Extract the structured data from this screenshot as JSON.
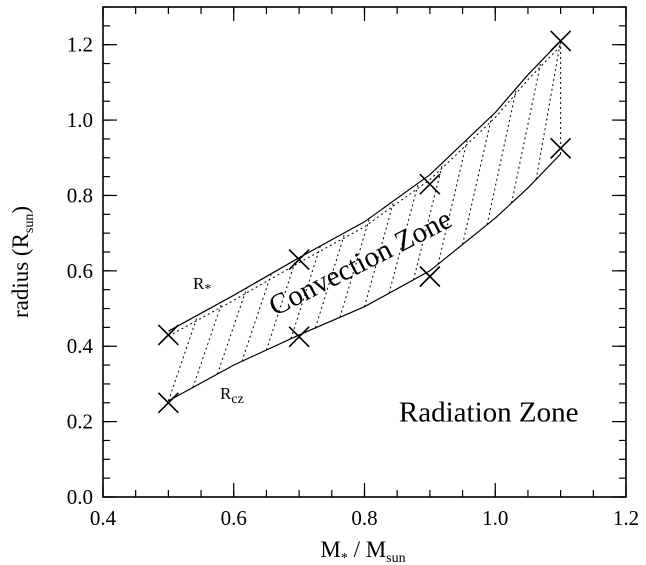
{
  "chart_data": {
    "type": "line",
    "x_axis": {
      "label_main": "M",
      "label_sub1": "*",
      "label_sep": " / M",
      "label_sub2": "sun",
      "range": [
        0.4,
        1.2
      ],
      "ticks": [
        0.4,
        0.6,
        0.8,
        1.0,
        1.2
      ],
      "tick_labels": [
        "0.4",
        "0.6",
        "0.8",
        "1.0",
        "1.2"
      ],
      "minor_step": 0.05
    },
    "y_axis": {
      "label_main": "radius (R",
      "label_sub": "sun",
      "label_end": ")",
      "range": [
        0.0,
        1.3
      ],
      "ticks": [
        0.0,
        0.2,
        0.4,
        0.6,
        0.8,
        1.0,
        1.2
      ],
      "tick_labels": [
        "0.0",
        "0.2",
        "0.4",
        "0.6",
        "0.8",
        "1.0",
        "1.2"
      ],
      "minor_step": 0.05
    },
    "series": [
      {
        "label_main": "R",
        "label_sub": "*",
        "x": [
          0.5,
          0.6,
          0.7,
          0.8,
          0.9,
          1.0,
          1.05,
          1.1
        ],
        "y": [
          0.44,
          0.535,
          0.635,
          0.73,
          0.855,
          1.02,
          1.12,
          1.21
        ],
        "markers_x": [
          0.5,
          0.7,
          0.9,
          1.1
        ],
        "markers_y": [
          0.43,
          0.63,
          0.83,
          1.21
        ]
      },
      {
        "label_main": "R",
        "label_sub": "cz",
        "x": [
          0.5,
          0.6,
          0.7,
          0.8,
          0.9,
          1.0,
          1.05,
          1.1
        ],
        "y": [
          0.255,
          0.35,
          0.43,
          0.505,
          0.6,
          0.74,
          0.82,
          0.91
        ],
        "markers_x": [
          0.5,
          0.7,
          0.9,
          1.1
        ],
        "markers_y": [
          0.25,
          0.425,
          0.585,
          0.925
        ]
      }
    ],
    "annotations": [
      {
        "text": "Convection Zone",
        "x": 0.8,
        "y": 0.6,
        "rotation": -27
      },
      {
        "text": "Radiation Zone",
        "x": 0.99,
        "y": 0.2,
        "rotation": 0
      }
    ],
    "grid": false,
    "legend": "none"
  }
}
